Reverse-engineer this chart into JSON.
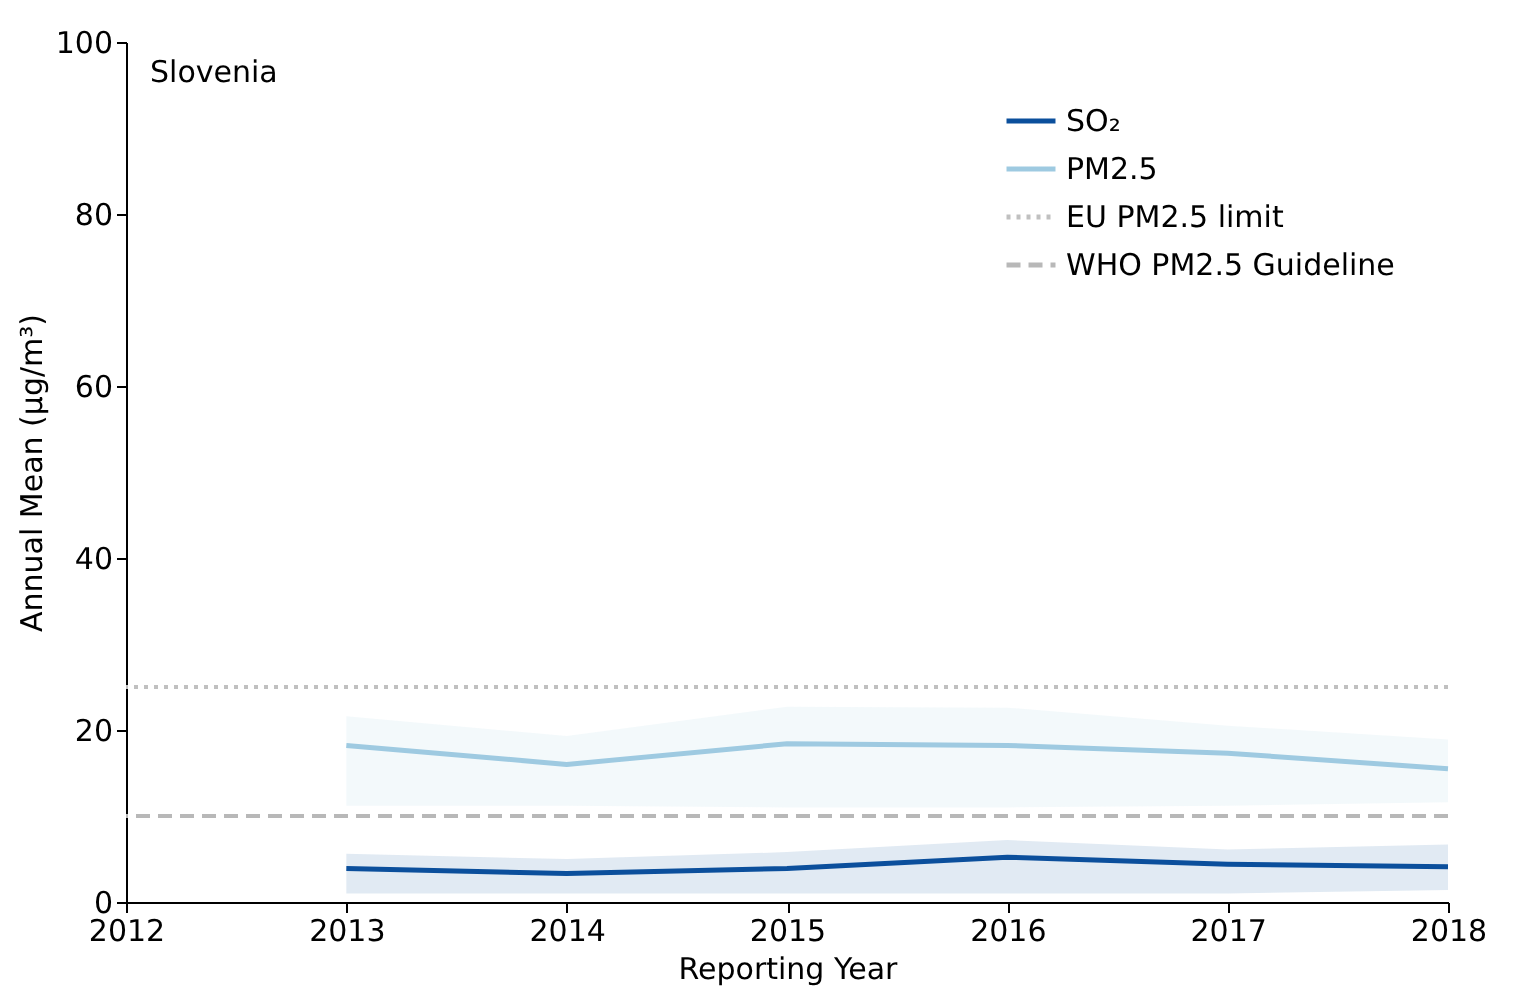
{
  "chart_data": {
    "type": "line",
    "title": "Slovenia",
    "xlabel": "Reporting Year",
    "ylabel": "Annual Mean (μg/m³)",
    "x": [
      2013,
      2014,
      2015,
      2016,
      2017,
      2018
    ],
    "series": [
      {
        "name": "SO₂",
        "color": "#0b4f9c",
        "values": [
          3.9,
          3.3,
          3.9,
          5.2,
          4.4,
          4.1
        ],
        "lower": [
          1.0,
          1.0,
          1.0,
          1.0,
          1.0,
          1.4
        ],
        "upper": [
          5.6,
          5.0,
          5.8,
          7.2,
          6.1,
          6.7
        ]
      },
      {
        "name": "PM2.5",
        "color": "#9ecae1",
        "values": [
          18.2,
          16.0,
          18.4,
          18.2,
          17.3,
          15.5
        ],
        "lower": [
          11.2,
          11.2,
          11.0,
          11.0,
          11.2,
          11.6
        ],
        "upper": [
          21.6,
          19.3,
          22.7,
          22.6,
          20.5,
          18.9
        ]
      }
    ],
    "ref_lines": [
      {
        "axis": "y",
        "value": 25,
        "label": "EU PM2.5 limit",
        "color": "#c0c0c0",
        "line_style": "dotted"
      },
      {
        "axis": "y",
        "value": 10,
        "label": "WHO PM2.5 Guideline",
        "color": "#b8b8b8",
        "line_style": "dashed"
      }
    ],
    "xlim": [
      2012,
      2018
    ],
    "xticks": [
      2012,
      2013,
      2014,
      2015,
      2016,
      2017,
      2018
    ],
    "ylim": [
      0,
      100
    ],
    "yticks": [
      0,
      20,
      40,
      60,
      80,
      100
    ],
    "grid": false,
    "legend": "top right",
    "line_style": "solid",
    "marker": "none"
  }
}
